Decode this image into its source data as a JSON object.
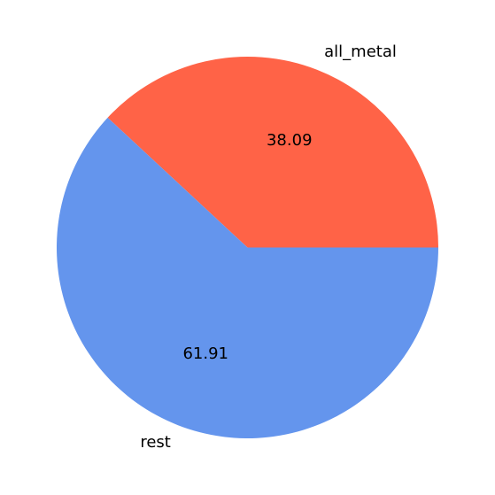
{
  "chart_data": {
    "type": "pie",
    "start_angle_deg": 0,
    "direction": "counterclockwise",
    "slices": [
      {
        "label": "all_metal",
        "value": 38.09,
        "value_label": "38.09",
        "color": "#ff6347"
      },
      {
        "label": "rest",
        "value": 61.91,
        "value_label": "61.91",
        "color": "#6495ed"
      }
    ]
  }
}
